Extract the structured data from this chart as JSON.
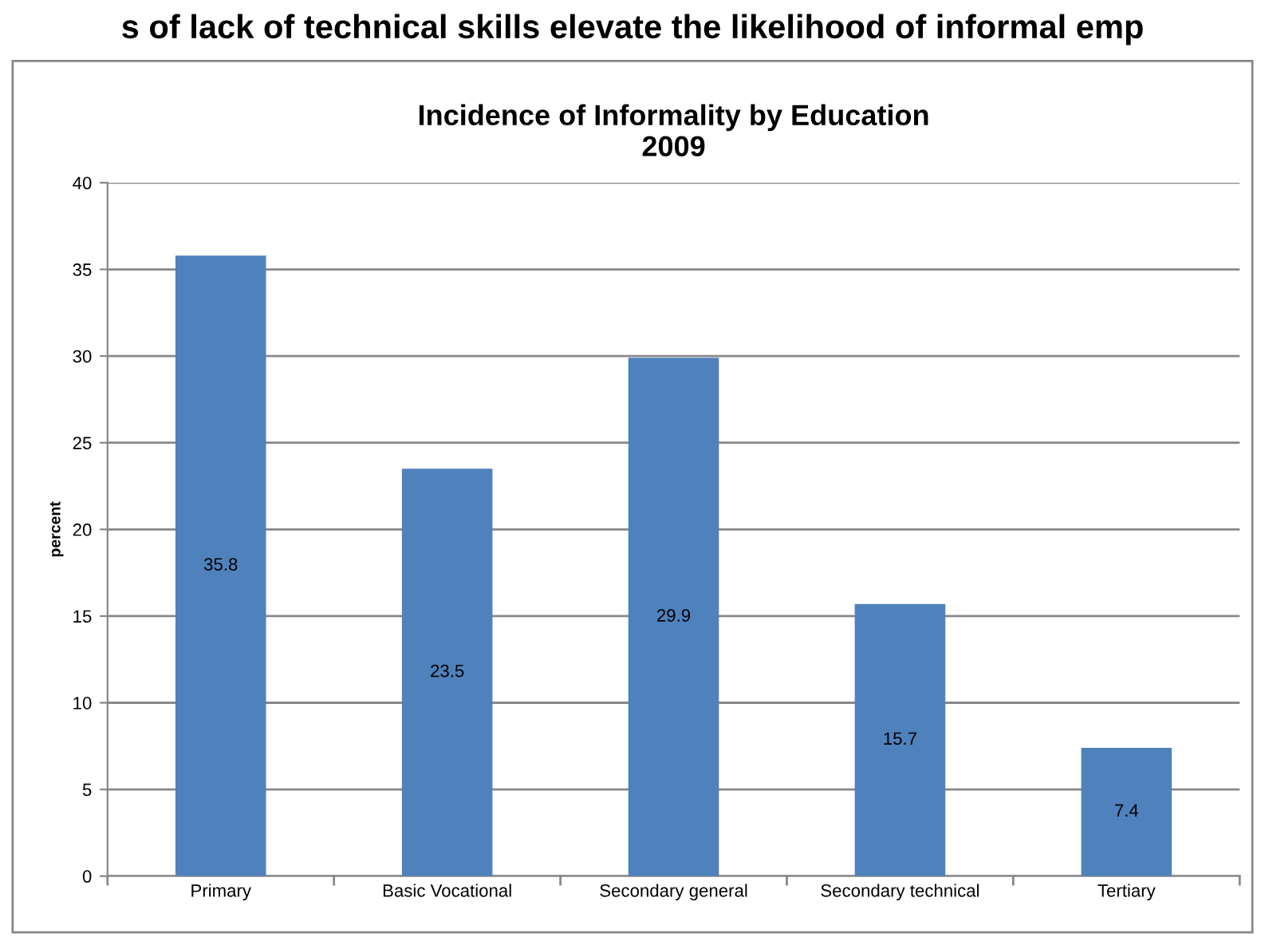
{
  "chart_data": {
    "type": "bar",
    "title": "Incidence of Informality by Education\n2009",
    "ylabel": "percent",
    "annotations": [
      "s of lack of technical skills elevate the likelihood of informal emp"
    ],
    "categories": [
      "Primary",
      "Basic Vocational",
      "Secondary general",
      "Secondary technical",
      "Tertiary"
    ],
    "values": [
      35.8,
      23.5,
      29.9,
      15.7,
      7.4
    ],
    "color": "#4f81bd",
    "ylim": [
      0,
      40
    ],
    "yticks": [
      0,
      5,
      10,
      15,
      20,
      25,
      30,
      35,
      40
    ],
    "grid": "y",
    "data_labels": true,
    "legend": false
  }
}
